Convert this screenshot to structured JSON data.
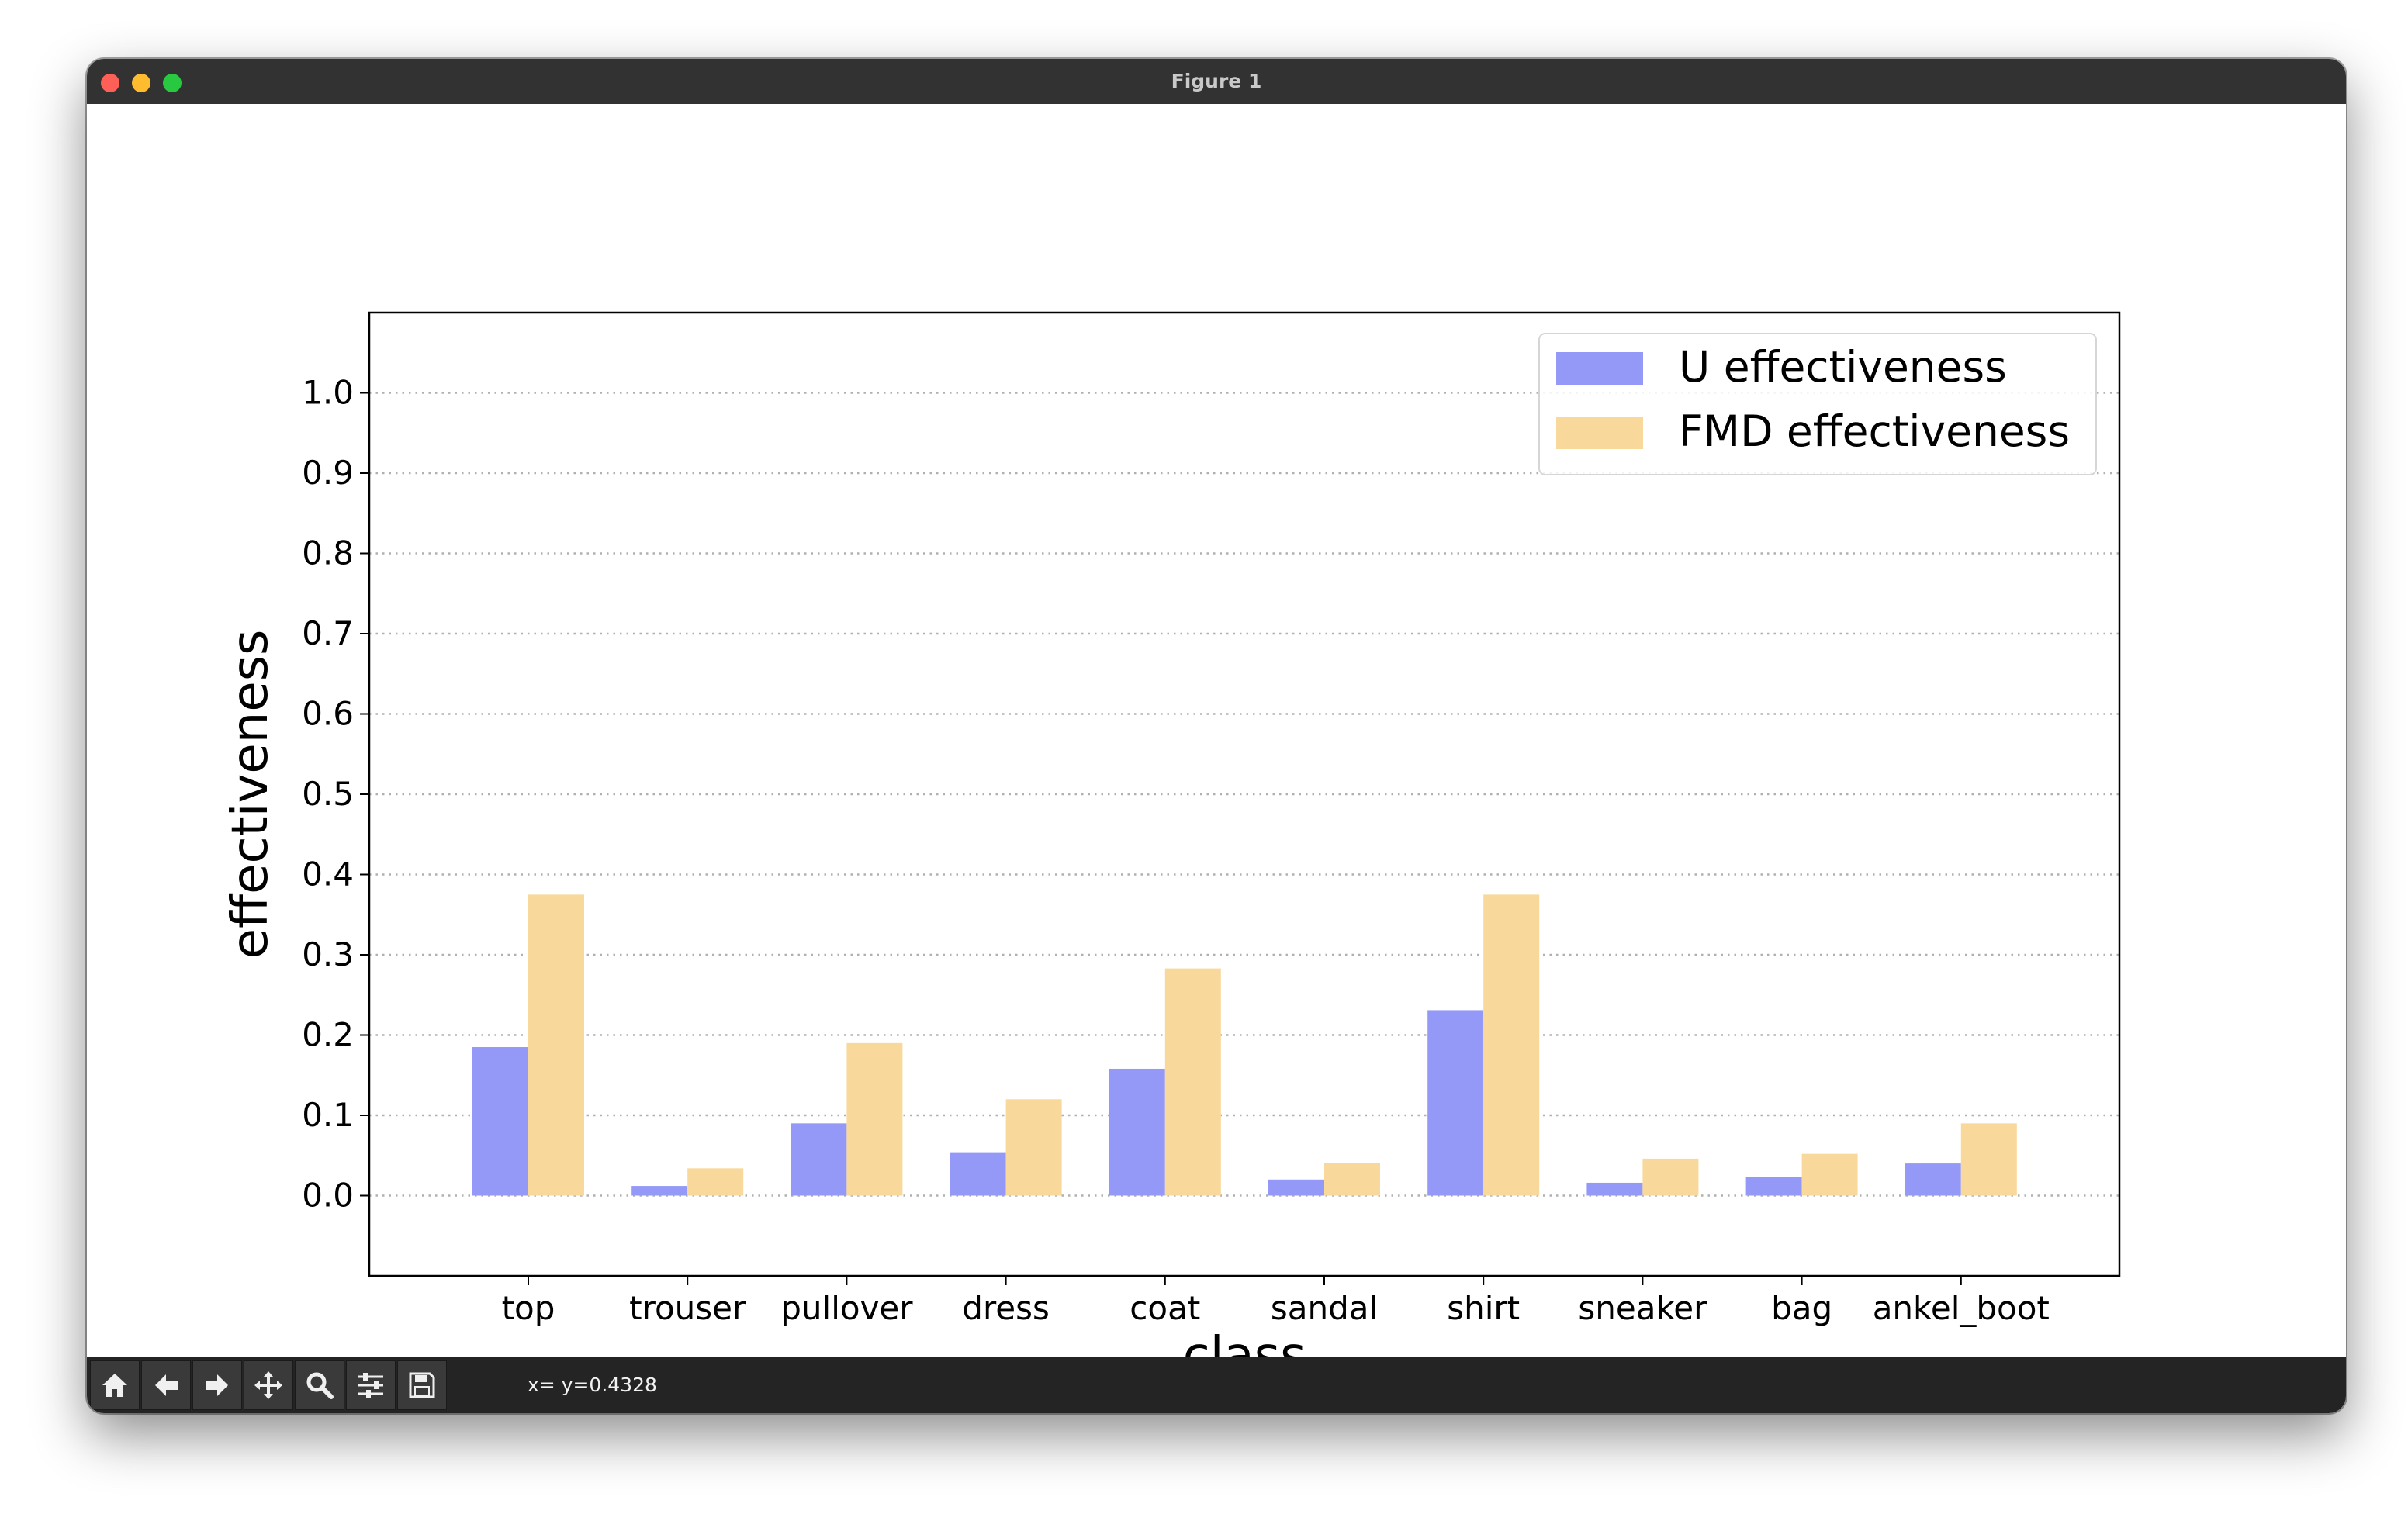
{
  "window": {
    "title": "Figure 1"
  },
  "toolbar": {
    "buttons": [
      "home-icon",
      "back-arrow-icon",
      "forward-arrow-icon",
      "pan-icon",
      "zoom-icon",
      "configure-subplots-icon",
      "save-icon"
    ],
    "coords": "x= y=0.4328"
  },
  "colors": {
    "u_series": "#9499f8",
    "fmd_series": "#f9d99b"
  },
  "chart_data": {
    "type": "bar",
    "title": "",
    "xlabel": "class",
    "ylabel": "effectiveness",
    "categories": [
      "top",
      "trouser",
      "pullover",
      "dress",
      "coat",
      "sandal",
      "shirt",
      "sneaker",
      "bag",
      "ankel_boot"
    ],
    "series": [
      {
        "name": "U effectiveness",
        "values": [
          0.185,
          0.012,
          0.09,
          0.054,
          0.158,
          0.02,
          0.231,
          0.016,
          0.023,
          0.04
        ]
      },
      {
        "name": "FMD effectiveness",
        "values": [
          0.375,
          0.034,
          0.19,
          0.12,
          0.283,
          0.041,
          0.375,
          0.046,
          0.052,
          0.09
        ]
      }
    ],
    "ylim": [
      -0.1,
      1.1
    ],
    "yticks": [
      "0.0",
      "0.1",
      "0.2",
      "0.3",
      "0.4",
      "0.5",
      "0.6",
      "0.7",
      "0.8",
      "0.9",
      "1.0"
    ],
    "grid": "horizontal dotted",
    "legend_position": "top-right"
  }
}
